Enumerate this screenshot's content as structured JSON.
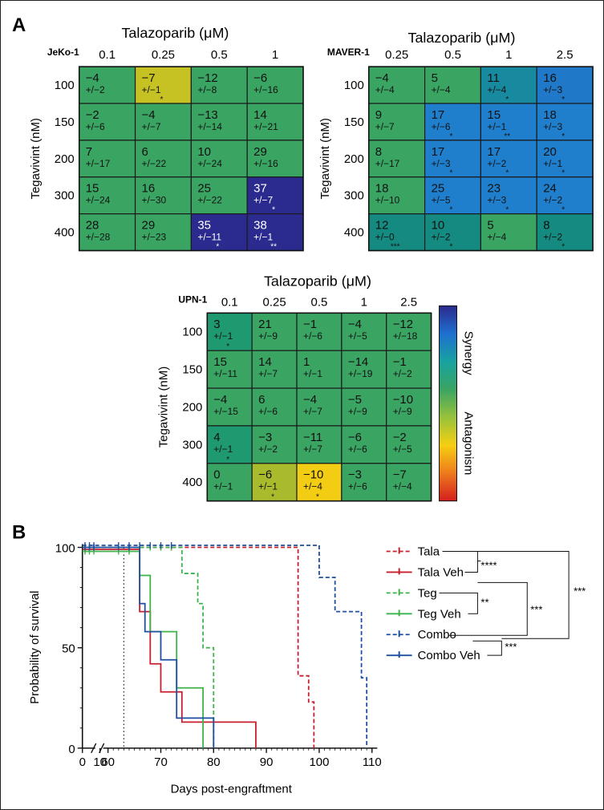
{
  "panels": {
    "a": "A",
    "b": "B"
  },
  "chart_data": [
    {
      "type": "heatmap",
      "cell_line": "JeKo-1",
      "title": "Talazoparib (μM)",
      "xlabel": "Talazoparib (μM)",
      "ylabel": "Tegavivint (nM)",
      "x": [
        "0.1",
        "0.25",
        "0.5",
        "1"
      ],
      "y": [
        "100",
        "150",
        "200",
        "300",
        "400"
      ],
      "values": [
        [
          -4,
          -7,
          -12,
          -6
        ],
        [
          -2,
          -4,
          -13,
          14
        ],
        [
          7,
          6,
          10,
          29
        ],
        [
          15,
          16,
          25,
          37
        ],
        [
          28,
          29,
          35,
          38
        ]
      ],
      "errors": [
        [
          "+/−2",
          "+/−1",
          "+/−8",
          "+/−16"
        ],
        [
          "+/−6",
          "+/−7",
          "+/−14",
          "+/−21"
        ],
        [
          "+/−17",
          "+/−22",
          "+/−24",
          "+/−16"
        ],
        [
          "+/−24",
          "+/−30",
          "+/−22",
          "+/−7"
        ],
        [
          "+/−28",
          "+/−23",
          "+/−11",
          "+/−1"
        ]
      ],
      "sig": [
        [
          "",
          "*",
          "",
          ""
        ],
        [
          "",
          "",
          "",
          ""
        ],
        [
          "",
          "",
          "",
          ""
        ],
        [
          "",
          "",
          "",
          "*"
        ],
        [
          "",
          "",
          "*",
          "**"
        ]
      ],
      "colors": [
        [
          "#3aa463",
          "#c6c224",
          "#3aa463",
          "#3aa463"
        ],
        [
          "#3aa463",
          "#3aa463",
          "#3aa463",
          "#3aa463"
        ],
        [
          "#3aa463",
          "#3aa463",
          "#3aa463",
          "#3aa463"
        ],
        [
          "#3aa463",
          "#3aa463",
          "#3aa463",
          "#2a2a8f"
        ],
        [
          "#3aa463",
          "#3aa463",
          "#2a2a8f",
          "#2a2a8f"
        ]
      ]
    },
    {
      "type": "heatmap",
      "cell_line": "MAVER-1",
      "title": "Talazoparib (μM)",
      "xlabel": "Talazoparib (μM)",
      "ylabel": "Tegavivint (nM)",
      "x": [
        "0.25",
        "0.5",
        "1",
        "2.5"
      ],
      "y": [
        "100",
        "150",
        "200",
        "300",
        "400"
      ],
      "values": [
        [
          -4,
          5,
          11,
          16
        ],
        [
          9,
          17,
          15,
          18
        ],
        [
          8,
          17,
          17,
          20
        ],
        [
          18,
          25,
          23,
          24
        ],
        [
          12,
          10,
          5,
          8
        ]
      ],
      "errors": [
        [
          "+/−4",
          "+/−4",
          "+/−4",
          "+/−3"
        ],
        [
          "+/−7",
          "+/−6",
          "+/−1",
          "+/−3"
        ],
        [
          "+/−17",
          "+/−3",
          "+/−2",
          "+/−1"
        ],
        [
          "+/−10",
          "+/−5",
          "+/−3",
          "+/−2"
        ],
        [
          "+/−0",
          "+/−2",
          "+/−4",
          "+/−2"
        ]
      ],
      "sig": [
        [
          "",
          "",
          "*",
          "*"
        ],
        [
          "",
          "*",
          "**",
          "*"
        ],
        [
          "",
          "*",
          "*",
          "*"
        ],
        [
          "",
          "*",
          "*",
          "*"
        ],
        [
          "***",
          "*",
          "",
          "*"
        ]
      ],
      "colors": [
        [
          "#3aa463",
          "#3aa463",
          "#188aa0",
          "#1f78c8"
        ],
        [
          "#3aa463",
          "#1f7fcd",
          "#1f7fcd",
          "#1f7fcd"
        ],
        [
          "#3aa463",
          "#1f7fcd",
          "#1f7fcd",
          "#1f7fcd"
        ],
        [
          "#3aa463",
          "#1f7fcd",
          "#1f7fcd",
          "#1f7fcd"
        ],
        [
          "#148a80",
          "#148a80",
          "#3aa463",
          "#148a80"
        ]
      ]
    },
    {
      "type": "heatmap",
      "cell_line": "UPN-1",
      "title": "Talazoparib (μM)",
      "xlabel": "Talazoparib (μM)",
      "ylabel": "Tegavivint (nM)",
      "x": [
        "0.1",
        "0.25",
        "0.5",
        "1",
        "2.5"
      ],
      "y": [
        "100",
        "150",
        "200",
        "300",
        "400"
      ],
      "values": [
        [
          3,
          21,
          -1,
          -4,
          -12
        ],
        [
          15,
          14,
          1,
          -14,
          -1
        ],
        [
          -4,
          6,
          -4,
          -5,
          -10
        ],
        [
          4,
          -3,
          -11,
          -6,
          -2
        ],
        [
          0,
          -6,
          -10,
          -3,
          -7
        ]
      ],
      "errors": [
        [
          "+/−1",
          "+/−9",
          "+/−6",
          "+/−5",
          "+/−18"
        ],
        [
          "+/−11",
          "+/−7",
          "+/−1",
          "+/−19",
          "+/−2"
        ],
        [
          "+/−15",
          "+/−6",
          "+/−7",
          "+/−9",
          "+/−9"
        ],
        [
          "+/−1",
          "+/−2",
          "+/−7",
          "+/−6",
          "+/−5"
        ],
        [
          "+/−1",
          "+/−1",
          "+/−4",
          "+/−6",
          "+/−4"
        ]
      ],
      "sig": [
        [
          "*",
          "",
          "",
          "",
          ""
        ],
        [
          "",
          "",
          "",
          "",
          ""
        ],
        [
          "",
          "",
          "",
          "",
          ""
        ],
        [
          "*",
          "",
          "",
          "",
          ""
        ],
        [
          "",
          "*",
          "*",
          "",
          ""
        ]
      ],
      "colors": [
        [
          "#1f9a70",
          "#3aa463",
          "#3aa463",
          "#3aa463",
          "#3aa463"
        ],
        [
          "#3aa463",
          "#3aa463",
          "#3aa463",
          "#3aa463",
          "#3aa463"
        ],
        [
          "#3aa463",
          "#3aa463",
          "#3aa463",
          "#3aa463",
          "#3aa463"
        ],
        [
          "#1f9a70",
          "#3aa463",
          "#3aa463",
          "#3aa463",
          "#3aa463"
        ],
        [
          "#3aa463",
          "#a9ba2c",
          "#f2cd14",
          "#3aa463",
          "#3aa463"
        ]
      ]
    },
    {
      "type": "colorbar",
      "labels": [
        "Synergy",
        "Antagonism"
      ],
      "gradient": [
        "#2b2a8c",
        "#1f6fd0",
        "#18a3a0",
        "#3aa463",
        "#98c23c",
        "#f6cf12",
        "#ee7a1c",
        "#d41f1f"
      ]
    },
    {
      "type": "line",
      "xlabel": "Days post-engraftment",
      "ylabel": "Probability of survival",
      "xticks": [
        0,
        10,
        60,
        70,
        80,
        90,
        100,
        110
      ],
      "yticks": [
        0,
        50,
        100
      ],
      "xlim": [
        0,
        110
      ],
      "ylim": [
        0,
        100
      ],
      "x_axis_break": [
        10,
        60
      ],
      "vline_dotted": 63,
      "series": [
        {
          "name": "Tala",
          "color": "#c81f2e",
          "dashed": true,
          "steps": [
            [
              0,
              100
            ],
            [
              96,
              100
            ],
            [
              96,
              36
            ],
            [
              98,
              36
            ],
            [
              98,
              23
            ],
            [
              99,
              23
            ],
            [
              99,
              0
            ]
          ]
        },
        {
          "name": "Tala Veh",
          "color": "#c81f2e",
          "dashed": false,
          "steps": [
            [
              0,
              99
            ],
            [
              66,
              99
            ],
            [
              66,
              68
            ],
            [
              68,
              68
            ],
            [
              68,
              42
            ],
            [
              70,
              42
            ],
            [
              70,
              28
            ],
            [
              74,
              28
            ],
            [
              74,
              13
            ],
            [
              88,
              13
            ],
            [
              88,
              0
            ]
          ]
        },
        {
          "name": "Teg",
          "color": "#3cb44a",
          "dashed": true,
          "steps": [
            [
              0,
              100
            ],
            [
              74,
              100
            ],
            [
              74,
              87
            ],
            [
              77,
              87
            ],
            [
              77,
              72
            ],
            [
              78,
              72
            ],
            [
              78,
              50
            ],
            [
              80,
              50
            ],
            [
              80,
              0
            ]
          ]
        },
        {
          "name": "Teg Veh",
          "color": "#3cb44a",
          "dashed": false,
          "steps": [
            [
              0,
              98
            ],
            [
              66,
              98
            ],
            [
              66,
              86
            ],
            [
              68,
              86
            ],
            [
              68,
              58
            ],
            [
              73,
              58
            ],
            [
              73,
              30
            ],
            [
              78,
              30
            ],
            [
              78,
              0
            ]
          ]
        },
        {
          "name": "Combo",
          "color": "#1f4fa0",
          "dashed": true,
          "steps": [
            [
              0,
              101
            ],
            [
              100,
              101
            ],
            [
              100,
              85
            ],
            [
              103,
              85
            ],
            [
              103,
              68
            ],
            [
              108,
              68
            ],
            [
              108,
              35
            ],
            [
              109,
              35
            ],
            [
              109,
              0
            ]
          ]
        },
        {
          "name": "Combo Veh",
          "color": "#1f4fa0",
          "dashed": false,
          "steps": [
            [
              0,
              100
            ],
            [
              66,
              100
            ],
            [
              66,
              72
            ],
            [
              67,
              72
            ],
            [
              67,
              58
            ],
            [
              70,
              58
            ],
            [
              70,
              44
            ],
            [
              73,
              44
            ],
            [
              73,
              15
            ],
            [
              80,
              15
            ],
            [
              80,
              0
            ]
          ]
        }
      ],
      "significance": [
        {
          "between": [
            "Tala",
            "Tala Veh"
          ],
          "label": "****"
        },
        {
          "between": [
            "Teg",
            "Teg Veh"
          ],
          "label": "**"
        },
        {
          "between": [
            "Combo",
            "Combo Veh"
          ],
          "label": "***"
        },
        {
          "between": [
            "Teg vs Tala",
            "Combo"
          ],
          "label": "***"
        },
        {
          "between": [
            "Tala",
            "Combo"
          ],
          "label": "***"
        }
      ]
    }
  ]
}
